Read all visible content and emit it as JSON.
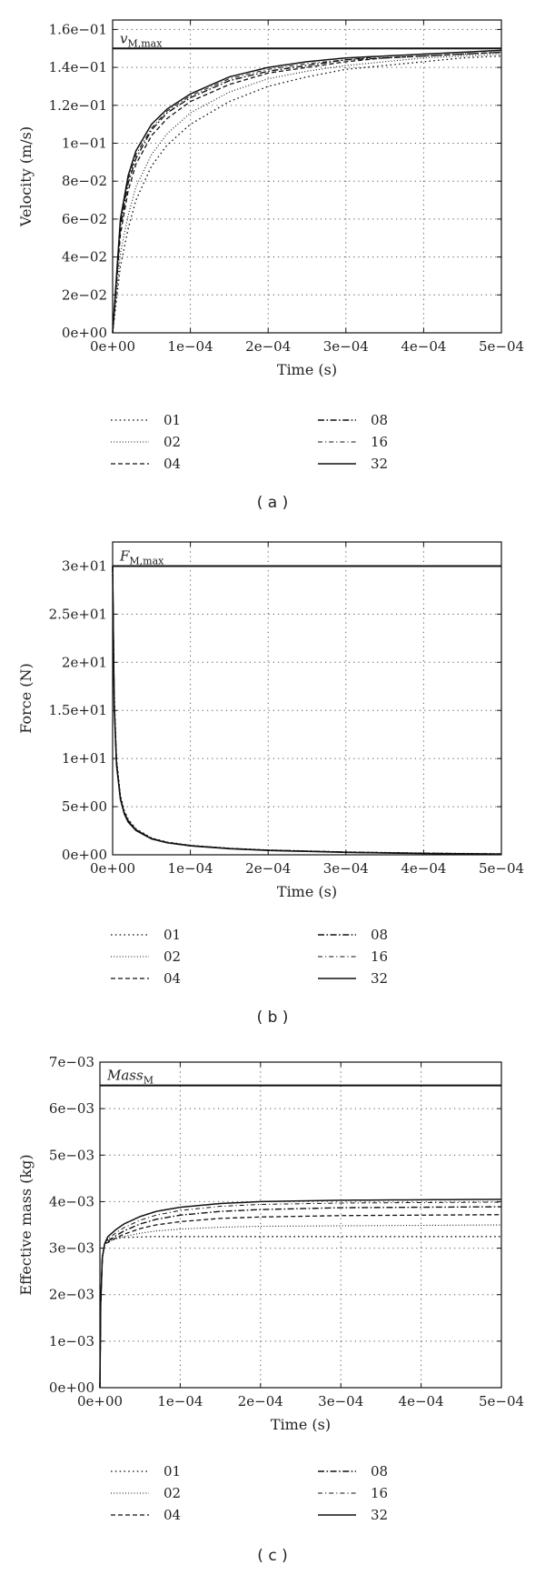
{
  "chart_data": [
    {
      "panel_label": "( a )",
      "type": "line",
      "xlabel": "Time (s)",
      "ylabel": "Velocity (m/s)",
      "xlim": [
        0,
        0.0005
      ],
      "ylim": [
        0,
        0.165
      ],
      "x_ticks": [
        0,
        0.0001,
        0.0002,
        0.0003,
        0.0004,
        0.0005
      ],
      "x_tick_labels": [
        "0e+00",
        "1e−04",
        "2e−04",
        "3e−04",
        "4e−04",
        "5e−04"
      ],
      "y_ticks": [
        0,
        0.02,
        0.04,
        0.06,
        0.08,
        0.1,
        0.12,
        0.14,
        0.16
      ],
      "y_tick_labels": [
        "0e+00",
        "2e−02",
        "4e−02",
        "6e−02",
        "8e−02",
        "1e−01",
        "1.2e−01",
        "1.4e−01",
        "1.6e−01"
      ],
      "grid": true,
      "legend_position": "below",
      "reference_line": {
        "label": "v_{M,max}",
        "label_main": "v",
        "label_sub": "M,max",
        "value": 0.15
      },
      "x": [
        0,
        1e-05,
        2e-05,
        3e-05,
        5e-05,
        7e-05,
        0.0001,
        0.00015,
        0.0002,
        0.00025,
        0.0003,
        0.00035,
        0.0004,
        0.00045,
        0.0005
      ],
      "series": [
        {
          "name": "01",
          "style": "dotted",
          "values": [
            0,
            0.035,
            0.055,
            0.07,
            0.088,
            0.099,
            0.11,
            0.122,
            0.13,
            0.135,
            0.139,
            0.141,
            0.143,
            0.145,
            0.146
          ]
        },
        {
          "name": "02",
          "style": "dotted-fine",
          "values": [
            0,
            0.042,
            0.062,
            0.077,
            0.094,
            0.105,
            0.116,
            0.127,
            0.134,
            0.138,
            0.141,
            0.143,
            0.145,
            0.146,
            0.147
          ]
        },
        {
          "name": "04",
          "style": "dashed",
          "values": [
            0,
            0.052,
            0.075,
            0.089,
            0.104,
            0.113,
            0.122,
            0.131,
            0.137,
            0.14,
            0.143,
            0.145,
            0.146,
            0.147,
            0.148
          ]
        },
        {
          "name": "08",
          "style": "dashdot",
          "values": [
            0,
            0.056,
            0.079,
            0.092,
            0.107,
            0.116,
            0.124,
            0.133,
            0.138,
            0.141,
            0.144,
            0.145,
            0.146,
            0.147,
            0.148
          ]
        },
        {
          "name": "16",
          "style": "dashdot-thin",
          "values": [
            0,
            0.058,
            0.081,
            0.094,
            0.108,
            0.117,
            0.125,
            0.134,
            0.139,
            0.142,
            0.144,
            0.146,
            0.147,
            0.148,
            0.149
          ]
        },
        {
          "name": "32",
          "style": "solid",
          "values": [
            0,
            0.06,
            0.083,
            0.096,
            0.11,
            0.118,
            0.126,
            0.135,
            0.14,
            0.143,
            0.145,
            0.146,
            0.147,
            0.148,
            0.149
          ]
        }
      ]
    },
    {
      "panel_label": "( b )",
      "type": "line",
      "xlabel": "Time (s)",
      "ylabel": "Force (N)",
      "xlim": [
        0,
        0.0005
      ],
      "ylim": [
        0,
        32.5
      ],
      "x_ticks": [
        0,
        0.0001,
        0.0002,
        0.0003,
        0.0004,
        0.0005
      ],
      "x_tick_labels": [
        "0e+00",
        "1e−04",
        "2e−04",
        "3e−04",
        "4e−04",
        "5e−04"
      ],
      "y_ticks": [
        0,
        5,
        10,
        15,
        20,
        25,
        30
      ],
      "y_tick_labels": [
        "0e+00",
        "5e+00",
        "1e+01",
        "1.5e+01",
        "2e+01",
        "2.5e+01",
        "3e+01"
      ],
      "grid": true,
      "legend_position": "below",
      "reference_line": {
        "label": "F_{M,max}",
        "label_main": "F",
        "label_sub": "M,max",
        "value": 30
      },
      "x": [
        0,
        2e-06,
        5e-06,
        1e-05,
        1.5e-05,
        2e-05,
        3e-05,
        5e-05,
        7e-05,
        0.0001,
        0.00015,
        0.0002,
        0.0003,
        0.0004,
        0.0005
      ],
      "series": [
        {
          "name": "01",
          "style": "dotted",
          "values": [
            30,
            17,
            10,
            6.2,
            4.6,
            3.7,
            2.7,
            1.75,
            1.32,
            0.98,
            0.68,
            0.5,
            0.3,
            0.18,
            0.1
          ]
        },
        {
          "name": "02",
          "style": "dotted-fine",
          "values": [
            30,
            16.5,
            9.8,
            6.0,
            4.5,
            3.6,
            2.65,
            1.72,
            1.3,
            0.97,
            0.67,
            0.49,
            0.29,
            0.17,
            0.1
          ]
        },
        {
          "name": "04",
          "style": "dashed",
          "values": [
            30,
            16,
            9.6,
            5.9,
            4.4,
            3.55,
            2.6,
            1.7,
            1.28,
            0.96,
            0.66,
            0.48,
            0.28,
            0.16,
            0.09
          ]
        },
        {
          "name": "08",
          "style": "dashdot",
          "values": [
            30,
            15.8,
            9.5,
            5.85,
            4.35,
            3.5,
            2.58,
            1.68,
            1.27,
            0.95,
            0.65,
            0.47,
            0.27,
            0.15,
            0.08
          ]
        },
        {
          "name": "16",
          "style": "dashdot-thin",
          "values": [
            30,
            15.6,
            9.4,
            5.8,
            4.3,
            3.45,
            2.55,
            1.66,
            1.26,
            0.94,
            0.64,
            0.46,
            0.26,
            0.14,
            0.07
          ]
        },
        {
          "name": "32",
          "style": "solid",
          "values": [
            30,
            15.4,
            9.3,
            5.75,
            4.25,
            3.4,
            2.52,
            1.65,
            1.25,
            0.93,
            0.63,
            0.45,
            0.25,
            0.13,
            0.06
          ]
        }
      ]
    },
    {
      "panel_label": "( c )",
      "type": "line",
      "xlabel": "Time (s)",
      "ylabel": "Effective mass (kg)",
      "xlim": [
        0,
        0.0005
      ],
      "ylim": [
        0,
        0.007
      ],
      "x_ticks": [
        0,
        0.0001,
        0.0002,
        0.0003,
        0.0004,
        0.0005
      ],
      "x_tick_labels": [
        "0e+00",
        "1e−04",
        "2e−04",
        "3e−04",
        "4e−04",
        "5e−04"
      ],
      "y_ticks": [
        0,
        0.001,
        0.002,
        0.003,
        0.004,
        0.005,
        0.006,
        0.007
      ],
      "y_tick_labels": [
        "0e+00",
        "1e−03",
        "2e−03",
        "3e−03",
        "4e−03",
        "5e−03",
        "6e−03",
        "7e−03"
      ],
      "grid": true,
      "legend_position": "below",
      "reference_line": {
        "label": "Mass_{M}",
        "label_main": "Mass",
        "label_sub": "M",
        "value": 0.0065
      },
      "x": [
        0,
        1e-06,
        3e-06,
        6e-06,
        1e-05,
        2e-05,
        3e-05,
        5e-05,
        7e-05,
        0.0001,
        0.00015,
        0.0002,
        0.0003,
        0.0004,
        0.0005
      ],
      "series": [
        {
          "name": "01",
          "style": "dotted",
          "values": [
            0,
            0.0018,
            0.0028,
            0.0031,
            0.0032,
            0.00322,
            0.00323,
            0.00324,
            0.00325,
            0.00325,
            0.00325,
            0.00325,
            0.00325,
            0.00325,
            0.00325
          ]
        },
        {
          "name": "02",
          "style": "dotted-fine",
          "values": [
            0,
            0.0018,
            0.0028,
            0.0031,
            0.00315,
            0.0032,
            0.00325,
            0.00332,
            0.00337,
            0.00341,
            0.00345,
            0.00347,
            0.00348,
            0.00349,
            0.0035
          ]
        },
        {
          "name": "04",
          "style": "dashed",
          "values": [
            0,
            0.0018,
            0.0028,
            0.0031,
            0.00312,
            0.00322,
            0.0033,
            0.00342,
            0.0035,
            0.00357,
            0.00364,
            0.00367,
            0.0037,
            0.00371,
            0.00372
          ]
        },
        {
          "name": "08",
          "style": "dashdot",
          "values": [
            0,
            0.0018,
            0.0028,
            0.0031,
            0.00315,
            0.00327,
            0.00337,
            0.00352,
            0.00362,
            0.00371,
            0.00379,
            0.00383,
            0.00387,
            0.00388,
            0.00389
          ]
        },
        {
          "name": "16",
          "style": "dashdot-thin",
          "values": [
            0,
            0.0018,
            0.0028,
            0.0031,
            0.0032,
            0.00333,
            0.00344,
            0.0036,
            0.00371,
            0.00381,
            0.0039,
            0.00394,
            0.00397,
            0.00398,
            0.00399
          ]
        },
        {
          "name": "32",
          "style": "solid",
          "values": [
            0,
            0.0018,
            0.0028,
            0.0031,
            0.00325,
            0.0034,
            0.00352,
            0.00368,
            0.00379,
            0.00388,
            0.00396,
            0.004,
            0.00403,
            0.00404,
            0.00405
          ]
        }
      ]
    }
  ]
}
